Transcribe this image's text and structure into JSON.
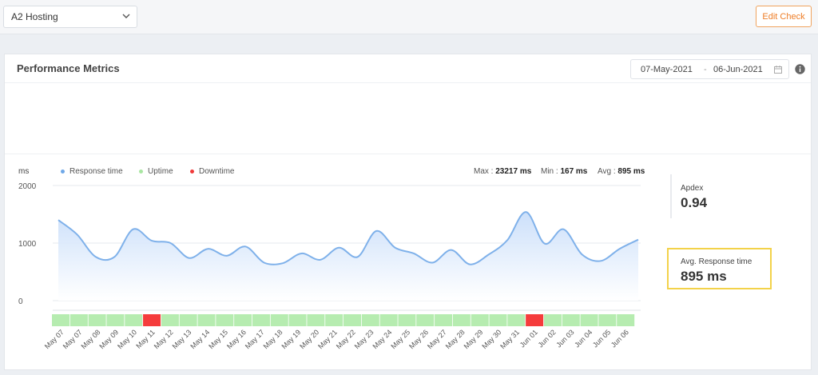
{
  "header": {
    "site_select_value": "A2 Hosting",
    "edit_button_label": "Edit Check"
  },
  "panel": {
    "title": "Performance Metrics",
    "date_from": "07-May-2021",
    "date_sep": "-",
    "date_to": "06-Jun-2021"
  },
  "legend": {
    "unit": "ms",
    "items": [
      {
        "label": "Response time",
        "color": "#6fa8e8"
      },
      {
        "label": "Uptime",
        "color": "#a8e6a1"
      },
      {
        "label": "Downtime",
        "color": "#f03a3a"
      }
    ]
  },
  "stats": {
    "max_label": "Max :",
    "max_value": "23217 ms",
    "min_label": "Min :",
    "min_value": "167 ms",
    "avg_label": "Avg :",
    "avg_value": "895 ms"
  },
  "apdex": {
    "label": "Apdex",
    "value": "0.94"
  },
  "avg_response": {
    "label": "Avg. Response time",
    "value": "895 ms"
  },
  "colors": {
    "accent": "#ee7d26",
    "line": "#7fb1ea",
    "area_top": "#c9defa",
    "uptime": "#b6ecb0",
    "downtime": "#f53c3c",
    "highlight": "#f3d24a"
  },
  "chart_data": {
    "type": "area",
    "ylabel": "ms",
    "ylim": [
      0,
      2000
    ],
    "yticks": [
      0,
      1000,
      2000
    ],
    "grid": true,
    "legend_position": "top-left",
    "x": [
      "May 07",
      "May 07",
      "May 08",
      "May 09",
      "May 10",
      "May 11",
      "May 12",
      "May 13",
      "May 14",
      "May 15",
      "May 16",
      "May 17",
      "May 18",
      "May 19",
      "May 20",
      "May 21",
      "May 22",
      "May 23",
      "May 24",
      "May 25",
      "May 26",
      "May 27",
      "May 28",
      "May 29",
      "May 30",
      "May 31",
      "Jun 01",
      "Jun 02",
      "Jun 03",
      "Jun 04",
      "Jun 05",
      "Jun 06"
    ],
    "series": [
      {
        "name": "Response time",
        "values": [
          1400,
          1150,
          760,
          760,
          1240,
          1040,
          1000,
          740,
          900,
          780,
          940,
          660,
          650,
          820,
          710,
          920,
          760,
          1210,
          920,
          820,
          660,
          880,
          630,
          800,
          1050,
          1540,
          990,
          1240,
          800,
          690,
          900,
          1060
        ]
      }
    ],
    "status": [
      "up",
      "up",
      "up",
      "up",
      "up",
      "down",
      "up",
      "up",
      "up",
      "up",
      "up",
      "up",
      "up",
      "up",
      "up",
      "up",
      "up",
      "up",
      "up",
      "up",
      "up",
      "up",
      "up",
      "up",
      "up",
      "up",
      "down",
      "up",
      "up",
      "up",
      "up",
      "up"
    ]
  }
}
